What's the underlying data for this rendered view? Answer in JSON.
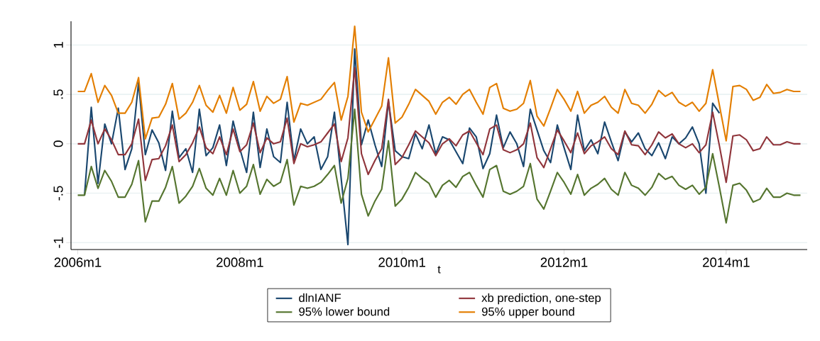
{
  "chart_data": {
    "type": "line",
    "xlabel": "t",
    "grid": "y",
    "legend": "bottom",
    "line_style": "solid",
    "x": [
      "2006-01",
      "2006-02",
      "2006-03",
      "2006-04",
      "2006-05",
      "2006-06",
      "2006-07",
      "2006-08",
      "2006-09",
      "2006-10",
      "2006-11",
      "2006-12",
      "2007-01",
      "2007-02",
      "2007-03",
      "2007-04",
      "2007-05",
      "2007-06",
      "2007-07",
      "2007-08",
      "2007-09",
      "2007-10",
      "2007-11",
      "2007-12",
      "2008-01",
      "2008-02",
      "2008-03",
      "2008-04",
      "2008-05",
      "2008-06",
      "2008-07",
      "2008-08",
      "2008-09",
      "2008-10",
      "2008-11",
      "2008-12",
      "2009-01",
      "2009-02",
      "2009-03",
      "2009-04",
      "2009-05",
      "2009-06",
      "2009-07",
      "2009-08",
      "2009-09",
      "2009-10",
      "2009-11",
      "2009-12",
      "2010-01",
      "2010-02",
      "2010-03",
      "2010-04",
      "2010-05",
      "2010-06",
      "2010-07",
      "2010-08",
      "2010-09",
      "2010-10",
      "2010-11",
      "2010-12",
      "2011-01",
      "2011-02",
      "2011-03",
      "2011-04",
      "2011-05",
      "2011-06",
      "2011-07",
      "2011-08",
      "2011-09",
      "2011-10",
      "2011-11",
      "2011-12",
      "2012-01",
      "2012-02",
      "2012-03",
      "2012-04",
      "2012-05",
      "2012-06",
      "2012-07",
      "2012-08",
      "2012-09",
      "2012-10",
      "2012-11",
      "2012-12",
      "2013-01",
      "2013-02",
      "2013-03",
      "2013-04",
      "2013-05",
      "2013-06",
      "2013-07",
      "2013-08",
      "2013-09",
      "2013-10",
      "2013-11",
      "2013-12",
      "2014-01",
      "2014-02",
      "2014-03",
      "2014-04",
      "2014-05",
      "2014-06",
      "2014-07",
      "2014-08",
      "2014-09",
      "2014-10",
      "2014-11",
      "2014-12"
    ],
    "xlim": [
      "2005-12",
      "2015-01"
    ],
    "xticks": [
      {
        "value": "2006-01",
        "label": "2006m1"
      },
      {
        "value": "2008-01",
        "label": "2008m1"
      },
      {
        "value": "2010-01",
        "label": "2010m1"
      },
      {
        "value": "2012-01",
        "label": "2012m1"
      },
      {
        "value": "2014-01",
        "label": "2014m1"
      }
    ],
    "ylim": [
      -1.07,
      1.24
    ],
    "yticks": [
      {
        "value": -1,
        "label": "-1"
      },
      {
        "value": -0.5,
        "label": "-.5"
      },
      {
        "value": 0,
        "label": "0"
      },
      {
        "value": 0.5,
        "label": ".5"
      },
      {
        "value": 1,
        "label": "1"
      }
    ],
    "series": [
      {
        "name": "dlnIANF",
        "color": "#1a476f",
        "values": [
          null,
          -0.52,
          0.37,
          -0.4,
          0.2,
          0.0,
          0.36,
          -0.26,
          -0.05,
          0.62,
          -0.11,
          0.14,
          0.01,
          -0.27,
          0.33,
          -0.14,
          -0.05,
          -0.29,
          0.35,
          -0.12,
          -0.04,
          0.19,
          -0.22,
          0.23,
          -0.05,
          -0.29,
          0.32,
          -0.24,
          0.15,
          -0.13,
          -0.19,
          0.42,
          -0.17,
          0.15,
          0.0,
          0.07,
          -0.26,
          -0.13,
          0.32,
          -0.35,
          -1.02,
          0.96,
          -0.01,
          0.24,
          -0.01,
          -0.23,
          0.43,
          -0.07,
          -0.13,
          -0.15,
          0.1,
          -0.05,
          0.19,
          -0.1,
          0.07,
          0.04,
          -0.08,
          -0.2,
          0.16,
          0.07,
          -0.25,
          -0.1,
          0.29,
          -0.04,
          0.12,
          0.0,
          -0.23,
          0.35,
          0.14,
          -0.07,
          -0.19,
          0.19,
          -0.04,
          -0.26,
          0.29,
          -0.07,
          0.04,
          -0.1,
          0.22,
          0.02,
          -0.17,
          0.12,
          0.02,
          0.11,
          -0.05,
          -0.12,
          0.01,
          -0.15,
          0.07,
          0.0,
          0.06,
          0.17,
          0.0,
          -0.5,
          0.41,
          0.31,
          null,
          null,
          null,
          null,
          null,
          null,
          null,
          null,
          null,
          null,
          null,
          null
        ]
      },
      {
        "name": "xb prediction, one-step",
        "color": "#90353b",
        "values": [
          0,
          0,
          0.24,
          0,
          0.15,
          0.04,
          -0.11,
          -0.11,
          0,
          0.25,
          -0.37,
          -0.16,
          -0.15,
          -0.02,
          0.19,
          -0.18,
          -0.11,
          0.01,
          0.17,
          -0.04,
          -0.1,
          0.07,
          -0.11,
          0.15,
          -0.08,
          -0.01,
          0.21,
          -0.09,
          0.06,
          0,
          0.02,
          0.26,
          -0.2,
          0,
          -0.03,
          -0.01,
          0.02,
          0.11,
          0.2,
          -0.18,
          0.06,
          0.77,
          -0.1,
          -0.31,
          -0.17,
          -0.05,
          0.45,
          -0.21,
          -0.14,
          -0.01,
          0.13,
          0.07,
          0.01,
          -0.12,
          0,
          0.05,
          -0.02,
          0.09,
          0.13,
          0.01,
          -0.11,
          0.15,
          0.19,
          -0.06,
          -0.09,
          -0.06,
          0,
          0.21,
          -0.14,
          -0.24,
          -0.05,
          0.14,
          0.03,
          -0.09,
          0.11,
          -0.1,
          -0.02,
          0.02,
          0.07,
          -0.05,
          -0.11,
          0.13,
          -0.01,
          -0.02,
          -0.11,
          -0.01,
          0.12,
          0.06,
          0.1,
          0,
          -0.04,
          0,
          -0.09,
          -0.01,
          0.32,
          -0.02,
          -0.39,
          0.08,
          0.09,
          0.04,
          -0.07,
          -0.05,
          0.07,
          -0.01,
          -0.01,
          0.02,
          0,
          0
        ]
      },
      {
        "name": "95% lower bound",
        "color": "#55752f",
        "values": [
          -0.52,
          -0.52,
          -0.23,
          -0.45,
          -0.27,
          -0.38,
          -0.54,
          -0.54,
          -0.41,
          -0.17,
          -0.79,
          -0.58,
          -0.58,
          -0.44,
          -0.23,
          -0.6,
          -0.53,
          -0.43,
          -0.25,
          -0.45,
          -0.52,
          -0.35,
          -0.52,
          -0.27,
          -0.5,
          -0.43,
          -0.21,
          -0.51,
          -0.36,
          -0.43,
          -0.39,
          -0.16,
          -0.62,
          -0.43,
          -0.45,
          -0.43,
          -0.39,
          -0.31,
          -0.22,
          -0.6,
          -0.35,
          0.35,
          -0.51,
          -0.73,
          -0.58,
          -0.46,
          0.03,
          -0.63,
          -0.56,
          -0.44,
          -0.29,
          -0.35,
          -0.4,
          -0.54,
          -0.42,
          -0.37,
          -0.44,
          -0.33,
          -0.29,
          -0.42,
          -0.54,
          -0.26,
          -0.22,
          -0.48,
          -0.51,
          -0.48,
          -0.43,
          -0.2,
          -0.56,
          -0.66,
          -0.48,
          -0.29,
          -0.39,
          -0.51,
          -0.31,
          -0.52,
          -0.45,
          -0.41,
          -0.35,
          -0.46,
          -0.52,
          -0.29,
          -0.42,
          -0.45,
          -0.52,
          -0.44,
          -0.3,
          -0.36,
          -0.33,
          -0.42,
          -0.46,
          -0.42,
          -0.51,
          -0.44,
          -0.1,
          -0.44,
          -0.8,
          -0.42,
          -0.4,
          -0.47,
          -0.59,
          -0.56,
          -0.45,
          -0.54,
          -0.54,
          -0.5,
          -0.52,
          -0.52
        ]
      },
      {
        "name": "95% upper bound",
        "color": "#e37e00",
        "values": [
          0.53,
          0.53,
          0.71,
          0.42,
          0.59,
          0.49,
          0.31,
          0.31,
          0.42,
          0.67,
          0.05,
          0.26,
          0.27,
          0.4,
          0.61,
          0.25,
          0.31,
          0.42,
          0.59,
          0.39,
          0.32,
          0.49,
          0.31,
          0.57,
          0.34,
          0.4,
          0.63,
          0.33,
          0.48,
          0.41,
          0.45,
          0.68,
          0.22,
          0.41,
          0.39,
          0.42,
          0.45,
          0.54,
          0.62,
          0.24,
          0.48,
          1.19,
          0.32,
          0.12,
          0.25,
          0.38,
          0.87,
          0.21,
          0.27,
          0.4,
          0.55,
          0.49,
          0.43,
          0.3,
          0.42,
          0.47,
          0.4,
          0.5,
          0.55,
          0.42,
          0.3,
          0.57,
          0.61,
          0.36,
          0.33,
          0.35,
          0.41,
          0.64,
          0.28,
          0.18,
          0.36,
          0.55,
          0.45,
          0.33,
          0.53,
          0.31,
          0.39,
          0.42,
          0.48,
          0.37,
          0.31,
          0.55,
          0.41,
          0.39,
          0.31,
          0.4,
          0.54,
          0.48,
          0.52,
          0.42,
          0.38,
          0.42,
          0.33,
          0.41,
          0.75,
          0.39,
          0.03,
          0.58,
          0.59,
          0.55,
          0.44,
          0.47,
          0.6,
          0.51,
          0.52,
          0.55,
          0.53,
          0.53
        ]
      }
    ]
  }
}
